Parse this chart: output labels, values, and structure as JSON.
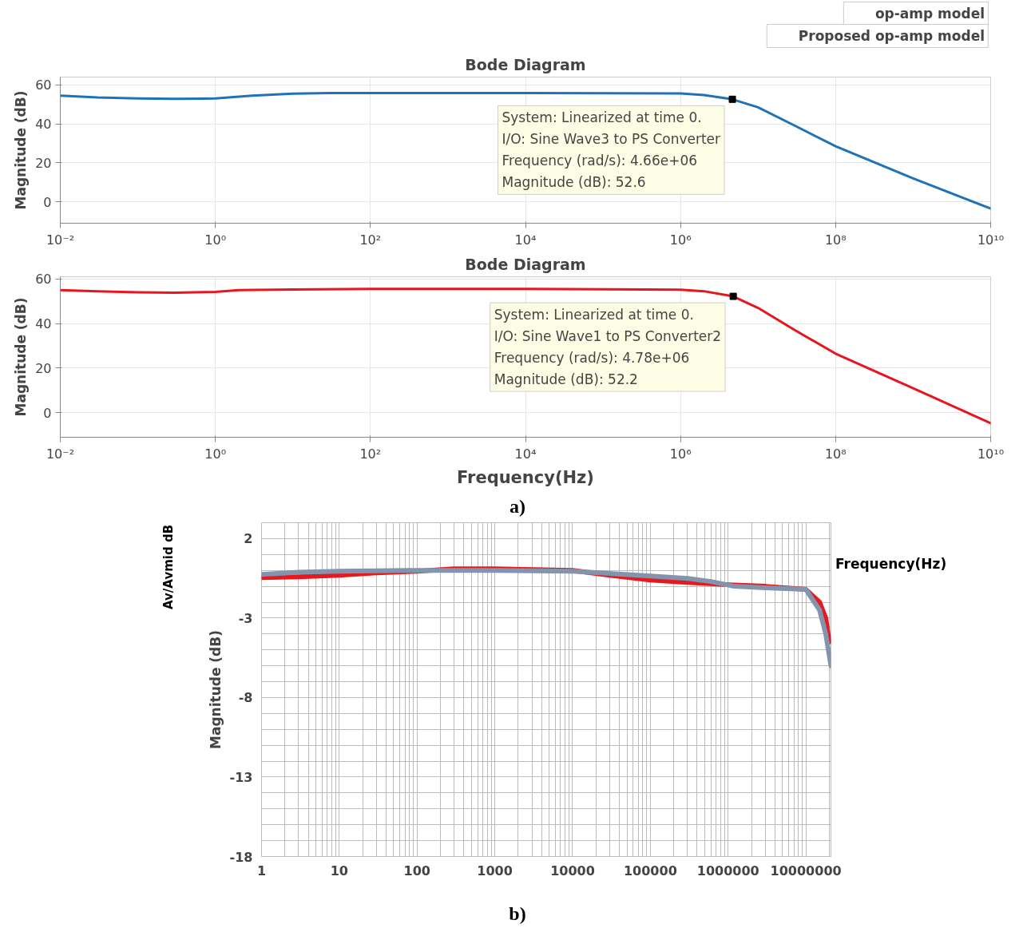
{
  "chart_data": [
    {
      "type": "line",
      "title": "Bode Diagram",
      "ylabel": "Magnitude (dB)",
      "log": "x",
      "xlim": [
        0.01,
        10000000000
      ],
      "ylim": [
        -11,
        64
      ],
      "xticks": [
        {
          "value": 0.01,
          "label": "10⁻²"
        },
        {
          "value": 1,
          "label": "10⁰"
        },
        {
          "value": 100,
          "label": "10²"
        },
        {
          "value": 10000,
          "label": "10⁴"
        },
        {
          "value": 1000000,
          "label": "10⁶"
        },
        {
          "value": 100000000,
          "label": "10⁸"
        },
        {
          "value": 10000000000,
          "label": "10¹⁰"
        }
      ],
      "yticks": [
        0,
        20,
        40,
        60
      ],
      "grid": true,
      "legend": "top right",
      "x": [
        0.01,
        0.03,
        0.1,
        0.3,
        1,
        3,
        10,
        30,
        100,
        10000,
        1000000,
        2000000,
        4660000,
        10000000,
        30000000,
        100000000,
        1000000000,
        10000000000
      ],
      "series": [
        {
          "name": "op-amp model",
          "color": "#1f72b8",
          "values": [
            54.5,
            53.5,
            53,
            52.8,
            53,
            54.5,
            55.5,
            55.8,
            55.8,
            55.8,
            55.6,
            54.8,
            52.6,
            48.5,
            39,
            28.5,
            12,
            -3.5
          ]
        }
      ],
      "annotations": [
        {
          "text": "System: Linearized at time 0.\nI/O: Sine Wave3 to PS Converter\nFrequency (rad/s): 4.66e+06\nMagnitude (dB): 52.6",
          "x": 4660000,
          "y": 52.6
        }
      ]
    },
    {
      "type": "line",
      "title": "Bode Diagram",
      "xlabel": "Frequency(Hz)",
      "ylabel": "Magnitude (dB)",
      "log": "x",
      "xlim": [
        0.01,
        10000000000
      ],
      "ylim": [
        -11,
        61
      ],
      "xticks": [
        {
          "value": 0.01,
          "label": "10⁻²"
        },
        {
          "value": 1,
          "label": "10⁰"
        },
        {
          "value": 100,
          "label": "10²"
        },
        {
          "value": 10000,
          "label": "10⁴"
        },
        {
          "value": 1000000,
          "label": "10⁶"
        },
        {
          "value": 100000000,
          "label": "10⁸"
        },
        {
          "value": 10000000000,
          "label": "10¹⁰"
        }
      ],
      "yticks": [
        0,
        20,
        40,
        60
      ],
      "grid": true,
      "legend": "top right",
      "x": [
        0.01,
        0.03,
        0.1,
        0.3,
        1,
        2,
        10,
        100,
        10000,
        1000000,
        2000000,
        4780000,
        10000000,
        30000000,
        100000000,
        1000000000,
        10000000000
      ],
      "series": [
        {
          "name": "Proposed op-amp model",
          "color": "#e8141e",
          "values": [
            55,
            54.5,
            54,
            53.8,
            54.2,
            55,
            55.3,
            55.5,
            55.5,
            55.2,
            54.5,
            52.2,
            47,
            37,
            26.5,
            11,
            -4.7
          ]
        }
      ],
      "annotations": [
        {
          "text": "System: Linearized at time 0.\nI/O: Sine Wave1 to PS Converter2\nFrequency (rad/s): 4.78e+06\nMagnitude (dB): 52.2",
          "x": 4780000,
          "y": 52.2
        },
        "a)"
      ]
    },
    {
      "type": "line",
      "xlabel": "Frequency(Hz)",
      "ylabel": "Magnitude (dB)",
      "log": "x",
      "xlim": [
        1,
        21000000
      ],
      "ylim": [
        -18,
        3
      ],
      "xticks": [
        1,
        10,
        100,
        1000,
        10000,
        100000,
        1000000,
        10000000
      ],
      "yticks": [
        2,
        -3,
        -8,
        -13,
        -18
      ],
      "grid": true,
      "series": [
        {
          "color": "#e8191e",
          "x": [
            1,
            3,
            10,
            30,
            100,
            300,
            1000,
            10000,
            30000,
            100000,
            300000,
            1000000,
            3000000,
            10000000,
            15000000,
            18000000,
            20000000
          ],
          "values": [
            -0.45,
            -0.4,
            -0.3,
            -0.15,
            -0.05,
            0.1,
            0.1,
            0,
            -0.3,
            -0.6,
            -0.75,
            -0.9,
            -1,
            -1.2,
            -2,
            -3,
            -4.5
          ]
        },
        {
          "color": "#8394ae",
          "x": [
            1,
            3,
            10,
            100,
            1000,
            10000,
            100000,
            300000,
            600000,
            1200000,
            3000000,
            10000000,
            15000000,
            18000000,
            21000000
          ],
          "values": [
            -0.25,
            -0.12,
            -0.05,
            0,
            0,
            -0.05,
            -0.35,
            -0.5,
            -0.7,
            -1,
            -1.1,
            -1.2,
            -2.5,
            -4,
            -6
          ]
        }
      ],
      "annotations": [
        "Av/Avmid dB",
        "b)"
      ]
    }
  ]
}
